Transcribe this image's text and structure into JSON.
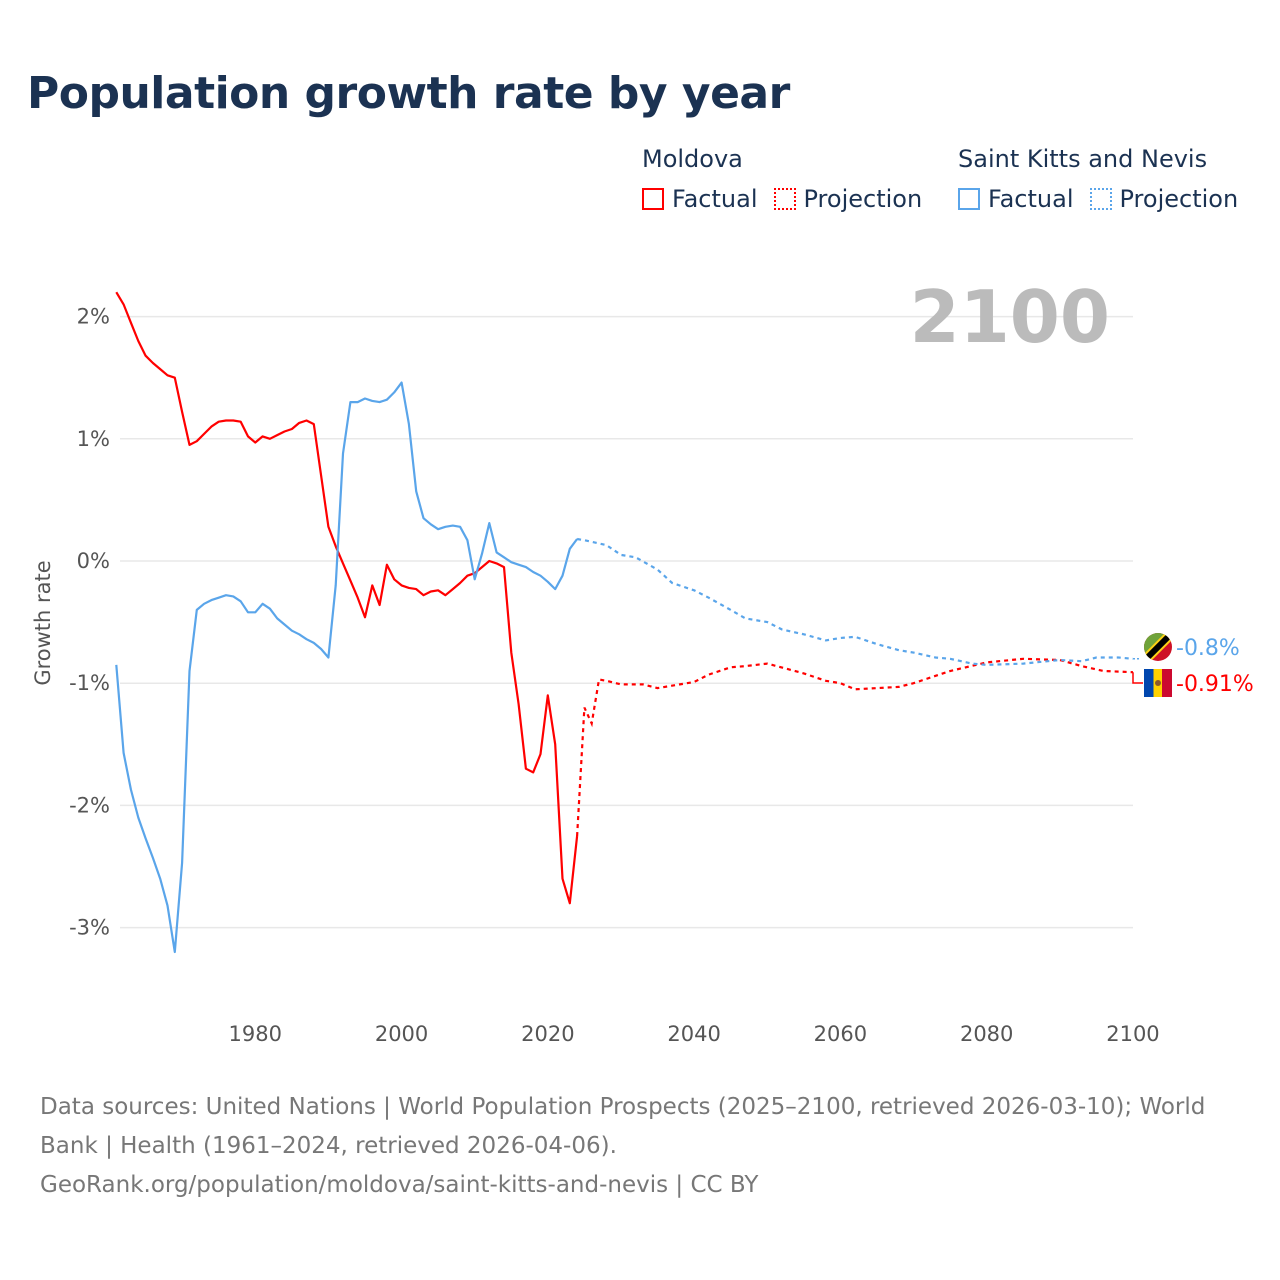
{
  "title": "Population growth rate by year",
  "legend": [
    {
      "country": "Moldova",
      "factual": "Factual",
      "projection": "Projection",
      "color": "#ff0000"
    },
    {
      "country": "Saint Kitts and Nevis",
      "factual": "Factual",
      "projection": "Projection",
      "color": "#5aa5ea"
    }
  ],
  "year_label": "2100",
  "footer": {
    "sources": "Data sources: United Nations | World Population Prospects (2025–2100, retrieved 2026-03-10); World Bank | Health (1961–2024, retrieved 2026-04-06).",
    "link": "GeoRank.org/population/moldova/saint-kitts-and-nevis | CC BY"
  },
  "chart_data": {
    "type": "line",
    "title": "Population growth rate by year",
    "xlabel": "",
    "ylabel": "Growth rate",
    "xlim": [
      1960,
      2100
    ],
    "ylim": [
      -3.5,
      2.4
    ],
    "x_ticks": [
      1980,
      2000,
      2020,
      2040,
      2060,
      2080,
      2100
    ],
    "y_ticks": [
      {
        "v": 2,
        "label": "2%"
      },
      {
        "v": 1,
        "label": "1%"
      },
      {
        "v": 0,
        "label": "0%"
      },
      {
        "v": -1,
        "label": "-1%"
      },
      {
        "v": -2,
        "label": "-2%"
      },
      {
        "v": -3,
        "label": "-3%"
      }
    ],
    "grid": true,
    "legend_position": "top-right",
    "series": [
      {
        "name": "Moldova",
        "color": "#ff0000",
        "end_label": "-0.91%",
        "factual": [
          [
            1961,
            2.2
          ],
          [
            1962,
            2.1
          ],
          [
            1963,
            1.95
          ],
          [
            1964,
            1.8
          ],
          [
            1965,
            1.68
          ],
          [
            1966,
            1.62
          ],
          [
            1967,
            1.57
          ],
          [
            1968,
            1.52
          ],
          [
            1969,
            1.5
          ],
          [
            1970,
            1.22
          ],
          [
            1971,
            0.95
          ],
          [
            1972,
            0.98
          ],
          [
            1973,
            1.04
          ],
          [
            1974,
            1.1
          ],
          [
            1975,
            1.14
          ],
          [
            1976,
            1.15
          ],
          [
            1977,
            1.15
          ],
          [
            1978,
            1.14
          ],
          [
            1979,
            1.02
          ],
          [
            1980,
            0.97
          ],
          [
            1981,
            1.02
          ],
          [
            1982,
            1.0
          ],
          [
            1983,
            1.03
          ],
          [
            1984,
            1.06
          ],
          [
            1985,
            1.08
          ],
          [
            1986,
            1.13
          ],
          [
            1987,
            1.15
          ],
          [
            1988,
            1.12
          ],
          [
            1989,
            0.7
          ],
          [
            1990,
            0.28
          ],
          [
            1991,
            0.12
          ],
          [
            1992,
            -0.02
          ],
          [
            1993,
            -0.16
          ],
          [
            1994,
            -0.3
          ],
          [
            1995,
            -0.46
          ],
          [
            1996,
            -0.2
          ],
          [
            1997,
            -0.36
          ],
          [
            1998,
            -0.03
          ],
          [
            1999,
            -0.15
          ],
          [
            2000,
            -0.2
          ],
          [
            2001,
            -0.22
          ],
          [
            2002,
            -0.23
          ],
          [
            2003,
            -0.28
          ],
          [
            2004,
            -0.25
          ],
          [
            2005,
            -0.24
          ],
          [
            2006,
            -0.28
          ],
          [
            2007,
            -0.23
          ],
          [
            2008,
            -0.18
          ],
          [
            2009,
            -0.12
          ],
          [
            2010,
            -0.1
          ],
          [
            2011,
            -0.05
          ],
          [
            2012,
            0.0
          ],
          [
            2013,
            -0.02
          ],
          [
            2014,
            -0.05
          ],
          [
            2015,
            -0.75
          ],
          [
            2016,
            -1.17
          ],
          [
            2017,
            -1.7
          ],
          [
            2018,
            -1.73
          ],
          [
            2019,
            -1.58
          ],
          [
            2020,
            -1.1
          ],
          [
            2021,
            -1.5
          ],
          [
            2022,
            -2.6
          ],
          [
            2023,
            -2.8
          ],
          [
            2024,
            -2.25
          ]
        ],
        "projection": [
          [
            2024,
            -2.25
          ],
          [
            2025,
            -1.2
          ],
          [
            2026,
            -1.33
          ],
          [
            2027,
            -0.97
          ],
          [
            2028,
            -0.98
          ],
          [
            2030,
            -1.01
          ],
          [
            2033,
            -1.01
          ],
          [
            2035,
            -1.04
          ],
          [
            2040,
            -0.99
          ],
          [
            2042,
            -0.93
          ],
          [
            2045,
            -0.87
          ],
          [
            2047,
            -0.86
          ],
          [
            2050,
            -0.84
          ],
          [
            2055,
            -0.92
          ],
          [
            2058,
            -0.98
          ],
          [
            2060,
            -1.0
          ],
          [
            2062,
            -1.05
          ],
          [
            2068,
            -1.03
          ],
          [
            2070,
            -1.0
          ],
          [
            2075,
            -0.9
          ],
          [
            2080,
            -0.83
          ],
          [
            2085,
            -0.8
          ],
          [
            2090,
            -0.81
          ],
          [
            2093,
            -0.86
          ],
          [
            2096,
            -0.9
          ],
          [
            2100,
            -0.91
          ]
        ]
      },
      {
        "name": "Saint Kitts and Nevis",
        "color": "#5aa5ea",
        "end_label": "-0.8%",
        "factual": [
          [
            1961,
            -0.85
          ],
          [
            1962,
            -1.57
          ],
          [
            1963,
            -1.87
          ],
          [
            1964,
            -2.1
          ],
          [
            1965,
            -2.27
          ],
          [
            1966,
            -2.43
          ],
          [
            1967,
            -2.6
          ],
          [
            1968,
            -2.82
          ],
          [
            1969,
            -3.2
          ],
          [
            1970,
            -2.47
          ],
          [
            1971,
            -0.9
          ],
          [
            1972,
            -0.4
          ],
          [
            1973,
            -0.35
          ],
          [
            1974,
            -0.32
          ],
          [
            1975,
            -0.3
          ],
          [
            1976,
            -0.28
          ],
          [
            1977,
            -0.29
          ],
          [
            1978,
            -0.33
          ],
          [
            1979,
            -0.42
          ],
          [
            1980,
            -0.42
          ],
          [
            1981,
            -0.35
          ],
          [
            1982,
            -0.39
          ],
          [
            1983,
            -0.47
          ],
          [
            1984,
            -0.52
          ],
          [
            1985,
            -0.57
          ],
          [
            1986,
            -0.6
          ],
          [
            1987,
            -0.64
          ],
          [
            1988,
            -0.67
          ],
          [
            1989,
            -0.72
          ],
          [
            1990,
            -0.79
          ],
          [
            1991,
            -0.2
          ],
          [
            1992,
            0.88
          ],
          [
            1993,
            1.3
          ],
          [
            1994,
            1.3
          ],
          [
            1995,
            1.33
          ],
          [
            1996,
            1.31
          ],
          [
            1997,
            1.3
          ],
          [
            1998,
            1.32
          ],
          [
            1999,
            1.38
          ],
          [
            2000,
            1.46
          ],
          [
            2001,
            1.12
          ],
          [
            2002,
            0.57
          ],
          [
            2003,
            0.35
          ],
          [
            2004,
            0.3
          ],
          [
            2005,
            0.26
          ],
          [
            2006,
            0.28
          ],
          [
            2007,
            0.29
          ],
          [
            2008,
            0.28
          ],
          [
            2009,
            0.17
          ],
          [
            2010,
            -0.15
          ],
          [
            2011,
            0.06
          ],
          [
            2012,
            0.31
          ],
          [
            2013,
            0.07
          ],
          [
            2014,
            0.03
          ],
          [
            2015,
            -0.01
          ],
          [
            2016,
            -0.03
          ],
          [
            2017,
            -0.05
          ],
          [
            2018,
            -0.09
          ],
          [
            2019,
            -0.12
          ],
          [
            2020,
            -0.17
          ],
          [
            2021,
            -0.23
          ],
          [
            2022,
            -0.12
          ],
          [
            2023,
            0.1
          ],
          [
            2024,
            0.18
          ]
        ],
        "projection": [
          [
            2024,
            0.18
          ],
          [
            2025,
            0.17
          ],
          [
            2028,
            0.13
          ],
          [
            2030,
            0.05
          ],
          [
            2032,
            0.03
          ],
          [
            2035,
            -0.07
          ],
          [
            2037,
            -0.18
          ],
          [
            2040,
            -0.24
          ],
          [
            2042,
            -0.3
          ],
          [
            2045,
            -0.4
          ],
          [
            2047,
            -0.47
          ],
          [
            2050,
            -0.5
          ],
          [
            2052,
            -0.56
          ],
          [
            2055,
            -0.6
          ],
          [
            2058,
            -0.65
          ],
          [
            2060,
            -0.63
          ],
          [
            2062,
            -0.62
          ],
          [
            2065,
            -0.68
          ],
          [
            2068,
            -0.73
          ],
          [
            2070,
            -0.75
          ],
          [
            2073,
            -0.79
          ],
          [
            2075,
            -0.8
          ],
          [
            2078,
            -0.84
          ],
          [
            2080,
            -0.85
          ],
          [
            2085,
            -0.84
          ],
          [
            2090,
            -0.81
          ],
          [
            2093,
            -0.82
          ],
          [
            2095,
            -0.79
          ],
          [
            2098,
            -0.79
          ],
          [
            2100,
            -0.8
          ]
        ]
      }
    ]
  }
}
